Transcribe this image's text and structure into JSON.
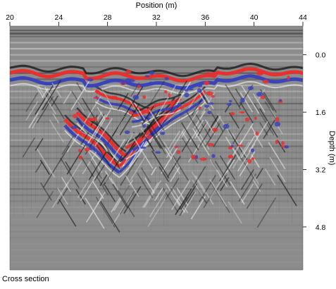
{
  "caption": "Cross section",
  "chart_data": {
    "type": "heatmap",
    "title": "",
    "xlabel": "Position (m)",
    "ylabel": "Depth (m)",
    "x_axis_position": "top",
    "y_axis_position": "right",
    "xlim": [
      20,
      44
    ],
    "ylim": [
      -0.8,
      6.0
    ],
    "y_inverted": true,
    "x_ticks": [
      "20",
      "24",
      "28",
      "32",
      "36",
      "40",
      "44"
    ],
    "y_ticks": [
      "0.0",
      "1.6",
      "3.2",
      "4.8"
    ],
    "grid": false,
    "legend": "none",
    "colors": {
      "background": "#8c8c8c",
      "positive_peak": "#e8302e",
      "negative_peak": "#3b43b8",
      "trace_light": "#e6e6e6",
      "trace_dark": "#1a1a1a"
    },
    "surface_reflector_depth_m": 0.5,
    "hyperbolic_reflector": {
      "x_range_m": [
        24,
        38
      ],
      "apex_position_m": 29,
      "max_depth_m": 3.7
    }
  }
}
